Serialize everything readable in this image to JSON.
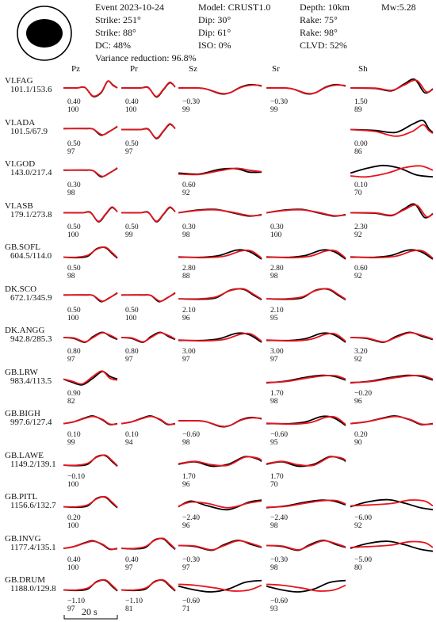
{
  "header": {
    "event": "Event  2023-10-24",
    "model": "Model: CRUST1.0",
    "depth": "Depth: 10km",
    "mw": "Mw:5.28",
    "strike1": "Strike: 251°",
    "dip1": "Dip: 30°",
    "rake1": "Rake: 75°",
    "strike2": "Strike: 88°",
    "dip2": "Dip: 61°",
    "rake2": "Rake: 98°",
    "dc": "DC: 48%",
    "iso": "ISO: 0%",
    "clvd": "CLVD: 52%",
    "variance": "Variance reduction: 96.8%"
  },
  "columns": [
    "Pz",
    "Pr",
    "Sz",
    "Sr",
    "Sh"
  ],
  "colors": {
    "observed": "#000000",
    "synthetic": "#e8141c"
  },
  "scale_bar": "20 s",
  "stations": [
    {
      "name": "VI.FAG",
      "dist": "101.1/153.6",
      "cells": [
        {
          "shift": "0.40",
          "cc": "100",
          "shape": "A"
        },
        {
          "shift": "0.40",
          "cc": "100",
          "shape": "B"
        },
        {
          "shift": "−0.30",
          "cc": "99",
          "shape": "C"
        },
        {
          "shift": "−0.30",
          "cc": "99",
          "shape": "C"
        },
        {
          "shift": "1.50",
          "cc": "89",
          "shape": "D"
        }
      ]
    },
    {
      "name": "VI.ADA",
      "dist": "101.5/67.9",
      "cells": [
        {
          "shift": "0.50",
          "cc": "97",
          "shape": "E"
        },
        {
          "shift": "0.50",
          "cc": "97",
          "shape": "B"
        },
        null,
        null,
        {
          "shift": "0.00",
          "cc": "86",
          "shape": "F"
        }
      ]
    },
    {
      "name": "VI.GOD",
      "dist": "143.0/217.4",
      "cells": [
        {
          "shift": "0.30",
          "cc": "98",
          "shape": "E"
        },
        null,
        {
          "shift": "0.60",
          "cc": "92",
          "shape": "G"
        },
        null,
        {
          "shift": "0.10",
          "cc": "70",
          "shape": "H"
        }
      ]
    },
    {
      "name": "VI.ASB",
      "dist": "179.1/273.8",
      "cells": [
        {
          "shift": "0.50",
          "cc": "100",
          "shape": "B"
        },
        {
          "shift": "0.50",
          "cc": "99",
          "shape": "B"
        },
        {
          "shift": "0.30",
          "cc": "98",
          "shape": "I"
        },
        {
          "shift": "0.30",
          "cc": "100",
          "shape": "I"
        },
        {
          "shift": "2.30",
          "cc": "92",
          "shape": "D"
        }
      ]
    },
    {
      "name": "GB.SOFL",
      "dist": "604.5/114.0",
      "cells": [
        {
          "shift": "0.50",
          "cc": "98",
          "shape": "J"
        },
        null,
        {
          "shift": "2.80",
          "cc": "88",
          "shape": "K"
        },
        {
          "shift": "2.80",
          "cc": "98",
          "shape": "K"
        },
        {
          "shift": "0.60",
          "cc": "92",
          "shape": "K"
        }
      ]
    },
    {
      "name": "DK.SCO",
      "dist": "672.1/345.9",
      "cells": [
        {
          "shift": "0.50",
          "cc": "100",
          "shape": "E"
        },
        {
          "shift": "0.50",
          "cc": "100",
          "shape": "E"
        },
        {
          "shift": "2.10",
          "cc": "96",
          "shape": "J"
        },
        {
          "shift": "2.10",
          "cc": "95",
          "shape": "J"
        },
        null
      ]
    },
    {
      "name": "DK.ANGG",
      "dist": "942.8/285.3",
      "cells": [
        {
          "shift": "0.80",
          "cc": "97",
          "shape": "L"
        },
        {
          "shift": "0.80",
          "cc": "97",
          "shape": "L"
        },
        {
          "shift": "3.00",
          "cc": "97",
          "shape": "K"
        },
        {
          "shift": "3.00",
          "cc": "97",
          "shape": "K"
        },
        {
          "shift": "3.20",
          "cc": "92",
          "shape": "L"
        }
      ]
    },
    {
      "name": "GB.LRW",
      "dist": "983.4/113.5",
      "cells": [
        {
          "shift": "0.90",
          "cc": "82",
          "shape": "M"
        },
        null,
        null,
        {
          "shift": "1.70",
          "cc": "98",
          "shape": "N"
        },
        {
          "shift": "−0.20",
          "cc": "96",
          "shape": "N"
        }
      ]
    },
    {
      "name": "GB.BIGH",
      "dist": "997.6/127.4",
      "cells": [
        {
          "shift": "0.10",
          "cc": "99",
          "shape": "O"
        },
        {
          "shift": "0.10",
          "cc": "94",
          "shape": "O"
        },
        {
          "shift": "−0.60",
          "cc": "98",
          "shape": "C"
        },
        {
          "shift": "−0.60",
          "cc": "95",
          "shape": "K"
        },
        {
          "shift": "0.20",
          "cc": "90",
          "shape": "O"
        }
      ]
    },
    {
      "name": "GB.LAWE",
      "dist": "1149.2/139.1",
      "cells": [
        {
          "shift": "−0.10",
          "cc": "100",
          "shape": "J"
        },
        null,
        {
          "shift": "1.70",
          "cc": "96",
          "shape": "P"
        },
        {
          "shift": "1.70",
          "cc": "70",
          "shape": "P"
        },
        null
      ]
    },
    {
      "name": "GB.PITL",
      "dist": "1156.6/132.7",
      "cells": [
        {
          "shift": "0.20",
          "cc": "100",
          "shape": "J"
        },
        null,
        {
          "shift": "−2.40",
          "cc": "96",
          "shape": "Q"
        },
        {
          "shift": "−2.40",
          "cc": "98",
          "shape": "N"
        },
        {
          "shift": "−6.00",
          "cc": "92",
          "shape": "R"
        }
      ]
    },
    {
      "name": "GB.INVG",
      "dist": "1177.4/135.1",
      "cells": [
        {
          "shift": "0.40",
          "cc": "100",
          "shape": "O"
        },
        {
          "shift": "0.40",
          "cc": "97",
          "shape": "J"
        },
        {
          "shift": "−0.30",
          "cc": "97",
          "shape": "L"
        },
        {
          "shift": "−0.30",
          "cc": "98",
          "shape": "L"
        },
        {
          "shift": "−5.00",
          "cc": "80",
          "shape": "R"
        }
      ]
    },
    {
      "name": "GB.DRUM",
      "dist": "1188.0/129.8",
      "cells": [
        {
          "shift": "−1.10",
          "cc": "97",
          "shape": "J"
        },
        {
          "shift": "−1.10",
          "cc": "81",
          "shape": "J"
        },
        {
          "shift": "−0.60",
          "cc": "71",
          "shape": "S"
        },
        {
          "shift": "−0.60",
          "cc": "93",
          "shape": "S"
        },
        null
      ]
    }
  ]
}
